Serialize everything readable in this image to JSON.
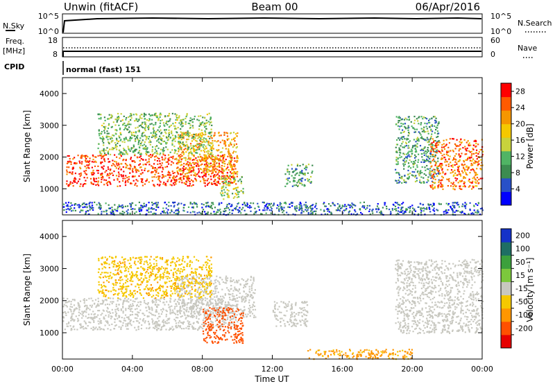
{
  "header": {
    "station": "Unwin (fitACF)",
    "beam": "Beam 00",
    "date": "06/Apr/2016"
  },
  "strip_labels": {
    "nsky": "N.Sky",
    "freq_line1": "Freq.",
    "freq_line2": "[MHz]",
    "cpid": "CPID",
    "nsearch": "N.Search",
    "nave": "Nave",
    "cpid_value": "normal (fast) 151",
    "nsky_ticks": [
      "10^5",
      "10^0"
    ],
    "nsearch_ticks": [
      "10^5",
      "10^0"
    ],
    "freq_ticks": [
      "18",
      "8"
    ],
    "nave_ticks": [
      "60",
      "0"
    ]
  },
  "colors": {
    "power": [
      "#0000ff",
      "#2850c8",
      "#3c8c50",
      "#50b464",
      "#c8d23c",
      "#f5c800",
      "#f59600",
      "#ff5a00",
      "#ff0000"
    ],
    "velocity": [
      "#e60000",
      "#ff5000",
      "#ff9600",
      "#f5c800",
      "#c8c8c0",
      "#7cc83c",
      "#3ca03c",
      "#1e6e64",
      "#1432c8"
    ]
  },
  "chart_data": [
    {
      "type": "heatmap",
      "name": "power",
      "xlabel": "",
      "ylabel": "Slant Range [km]",
      "x_ticks": [
        "00:00",
        "04:00",
        "08:00",
        "12:00",
        "16:00",
        "20:00",
        "00:00"
      ],
      "x_range_hours": [
        0,
        24
      ],
      "y_ticks": [
        1000,
        2000,
        3000,
        4000
      ],
      "ylim": [
        180,
        4500
      ],
      "colorbar_label": "Power [dB]",
      "colorbar_ticks": [
        4,
        8,
        12,
        16,
        20,
        24,
        28
      ],
      "colorbar_range": [
        0,
        30
      ],
      "echo_regions": [
        {
          "t_start": 0.2,
          "t_end": 10.0,
          "range_low": 1100,
          "range_high": 2100,
          "power_db": 26
        },
        {
          "t_start": 6.5,
          "t_end": 10.0,
          "range_low": 1500,
          "range_high": 2800,
          "power_db": 20
        },
        {
          "t_start": 2.0,
          "t_end": 8.5,
          "range_low": 2100,
          "range_high": 3400,
          "power_db": 12
        },
        {
          "t_start": 9.0,
          "t_end": 10.3,
          "range_low": 700,
          "range_high": 1500,
          "power_db": 14
        },
        {
          "t_start": 12.7,
          "t_end": 14.3,
          "range_low": 1100,
          "range_high": 1800,
          "power_db": 10
        },
        {
          "t_start": 19.0,
          "t_end": 21.5,
          "range_low": 1200,
          "range_high": 3300,
          "power_db": 10
        },
        {
          "t_start": 21.0,
          "t_end": 24.0,
          "range_low": 1000,
          "range_high": 2600,
          "power_db": 24
        },
        {
          "t_start": 0.0,
          "t_end": 24.0,
          "range_low": 200,
          "range_high": 600,
          "power_db": 6
        }
      ]
    },
    {
      "type": "heatmap",
      "name": "velocity",
      "xlabel": "Time UT",
      "ylabel": "Slant Range [km]",
      "x_ticks": [
        "00:00",
        "04:00",
        "08:00",
        "12:00",
        "16:00",
        "20:00",
        "00:00"
      ],
      "x_range_hours": [
        0,
        24
      ],
      "y_ticks": [
        1000,
        2000,
        3000,
        4000
      ],
      "ylim": [
        180,
        4500
      ],
      "colorbar_label": "Velocity [m s⁻¹]",
      "colorbar_ticks": [
        200,
        100,
        50,
        15,
        -15,
        -50,
        -100,
        -200
      ],
      "echo_regions": [
        {
          "t_start": 0.0,
          "t_end": 10.0,
          "range_low": 1100,
          "range_high": 2100,
          "velocity": 0
        },
        {
          "t_start": 6.5,
          "t_end": 11.0,
          "range_low": 1500,
          "range_high": 2800,
          "velocity": 0
        },
        {
          "t_start": 8.0,
          "t_end": 10.3,
          "range_low": 700,
          "range_high": 1800,
          "velocity": -120
        },
        {
          "t_start": 2.0,
          "t_end": 8.5,
          "range_low": 2100,
          "range_high": 3400,
          "velocity": -40
        },
        {
          "t_start": 12.0,
          "t_end": 14.0,
          "range_low": 1200,
          "range_high": 2000,
          "velocity": 0
        },
        {
          "t_start": 19.0,
          "t_end": 24.0,
          "range_low": 1000,
          "range_high": 3300,
          "velocity": 0
        },
        {
          "t_start": 14.0,
          "t_end": 20.0,
          "range_low": 200,
          "range_high": 500,
          "velocity": -60
        }
      ]
    }
  ]
}
